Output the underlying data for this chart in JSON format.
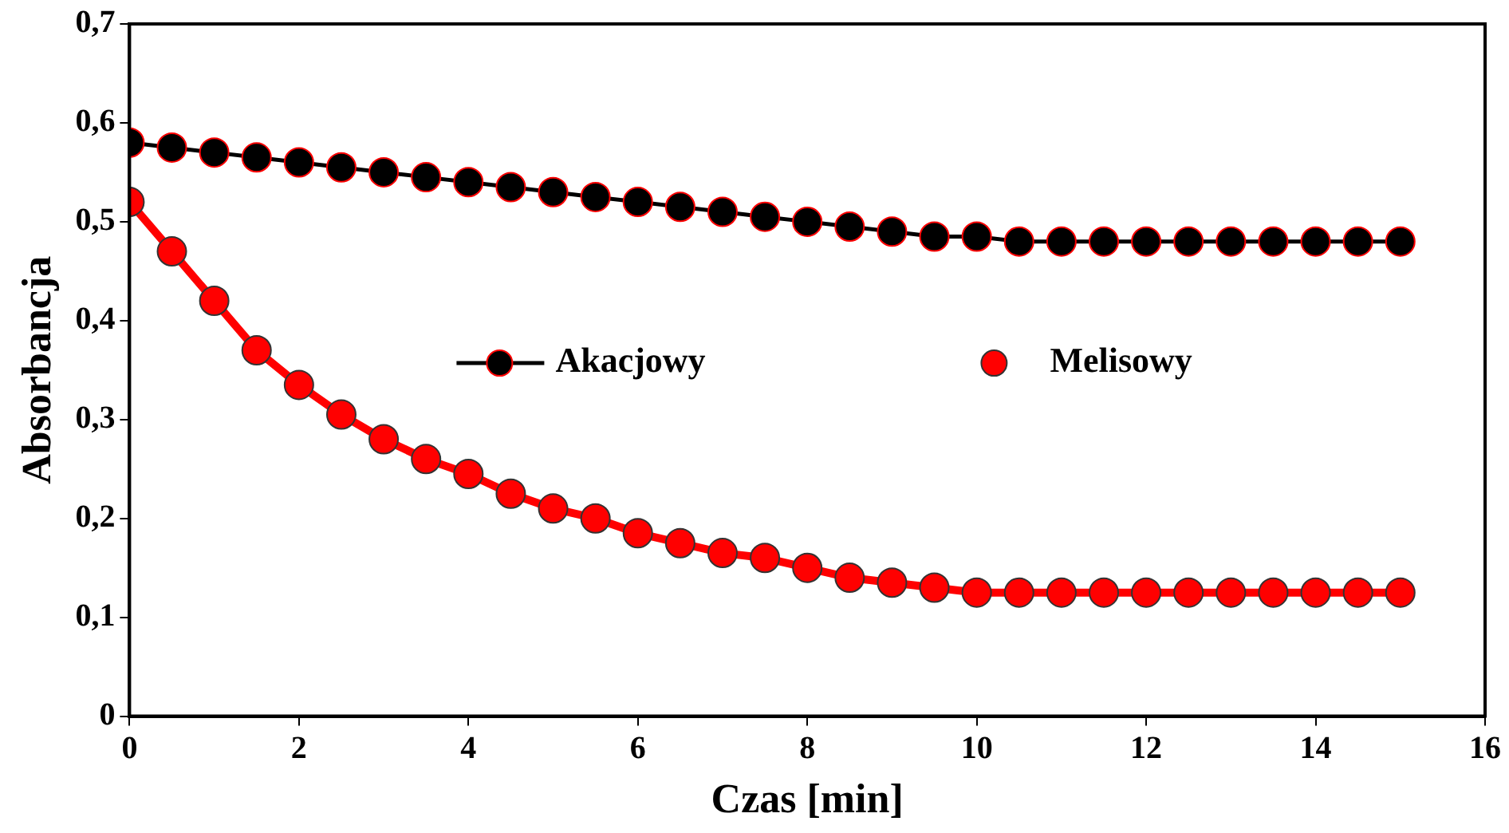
{
  "chart_data": {
    "type": "line",
    "xlabel": "Czas [min]",
    "ylabel": "Absorbancja",
    "x": [
      0,
      0.5,
      1,
      1.5,
      2,
      2.5,
      3,
      3.5,
      4,
      4.5,
      5,
      5.5,
      6,
      6.5,
      7,
      7.5,
      8,
      8.5,
      9,
      9.5,
      10,
      10.5,
      11,
      11.5,
      12,
      12.5,
      13,
      13.5,
      14,
      14.5,
      15
    ],
    "series": [
      {
        "name": "Akacjowy",
        "color": "#000000",
        "values": [
          0.58,
          0.575,
          0.57,
          0.565,
          0.56,
          0.555,
          0.55,
          0.545,
          0.54,
          0.535,
          0.53,
          0.525,
          0.52,
          0.515,
          0.51,
          0.505,
          0.5,
          0.495,
          0.49,
          0.485,
          0.485,
          0.48,
          0.48,
          0.48,
          0.48,
          0.48,
          0.48,
          0.48,
          0.48,
          0.48,
          0.48
        ]
      },
      {
        "name": "Melisowy",
        "color": "#ff0000",
        "values": [
          0.52,
          0.47,
          0.42,
          0.37,
          0.335,
          0.305,
          0.28,
          0.26,
          0.245,
          0.225,
          0.21,
          0.2,
          0.185,
          0.175,
          0.165,
          0.16,
          0.15,
          0.14,
          0.135,
          0.13,
          0.125,
          0.125,
          0.125,
          0.125,
          0.125,
          0.125,
          0.125,
          0.125,
          0.125,
          0.125,
          0.125
        ]
      }
    ],
    "xlim": [
      0,
      16
    ],
    "xticks": [
      0,
      2,
      4,
      6,
      8,
      10,
      12,
      14,
      16
    ],
    "ylim": [
      0,
      0.7
    ],
    "yticks": [
      0,
      {
        "value": 0.1,
        "label": "0,1"
      },
      {
        "value": 0.2,
        "label": "0,2"
      },
      {
        "value": 0.3,
        "label": "0,3"
      },
      {
        "value": 0.4,
        "label": "0,4"
      },
      {
        "value": 0.5,
        "label": "0,5"
      },
      {
        "value": 0.6,
        "label": "0,6"
      },
      {
        "value": 0.7,
        "label": "0,7"
      }
    ],
    "grid": false,
    "legend": "center",
    "marker": "circle",
    "line_style": "solid"
  }
}
